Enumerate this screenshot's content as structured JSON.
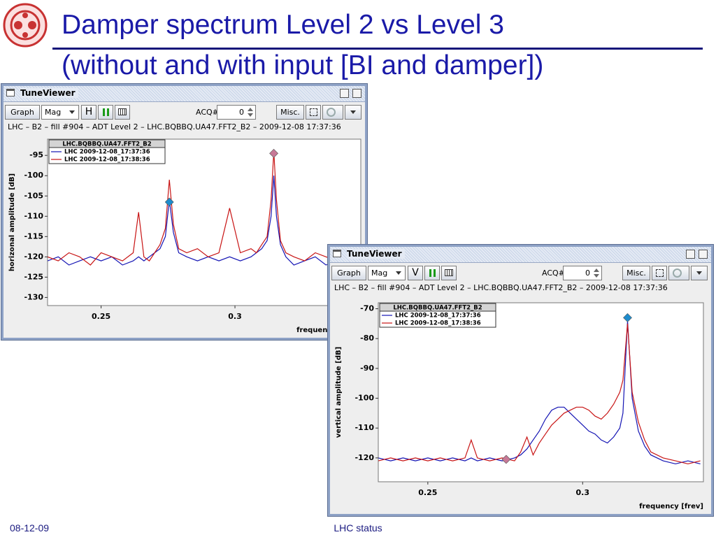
{
  "slide": {
    "title_line1": "Damper spectrum Level 2 vs Level 3",
    "title_line2": "(without and with input [BI and damper])",
    "footer_date": "08-12-09",
    "footer_center": "LHC status"
  },
  "windows": [
    {
      "title": "TuneViewer",
      "graph": "Graph",
      "mode": "Mag",
      "plane": "H",
      "acq_label": "ACQ#",
      "acq_value": 0,
      "misc": "Misc.",
      "info": "LHC – B2 – fill #904 – ADT Level 2 – LHC.BQBBQ.UA47.FFT2_B2 – 2009-12-08 17:37:36"
    },
    {
      "title": "TuneViewer",
      "graph": "Graph",
      "mode": "Mag",
      "plane": "V",
      "acq_label": "ACQ#",
      "acq_value": 0,
      "misc": "Misc.",
      "info": "LHC – B2 – fill #904 – ADT Level 2 – LHC.BQBBQ.UA47.FFT2_B2 – 2009-12-08 17:37:36"
    }
  ],
  "chart_data": [
    {
      "type": "line",
      "legend_title": "LHC.BQBBQ.UA47.FFT2_B2",
      "y_label": "horizonal amplitude [dB]",
      "x_label": "frequency [frev]",
      "xlim": [
        0.23,
        0.347
      ],
      "ylim": [
        -132,
        -91
      ],
      "xticks": [
        0.25,
        0.3
      ],
      "yticks": [
        -95,
        -100,
        -105,
        -110,
        -115,
        -120,
        -125,
        -130
      ],
      "x": [
        0.23,
        0.234,
        0.238,
        0.242,
        0.246,
        0.25,
        0.254,
        0.258,
        0.262,
        0.264,
        0.266,
        0.268,
        0.27,
        0.272,
        0.274,
        0.2755,
        0.277,
        0.279,
        0.282,
        0.286,
        0.29,
        0.294,
        0.298,
        0.302,
        0.306,
        0.308,
        0.31,
        0.312,
        0.3135,
        0.3145,
        0.3155,
        0.317,
        0.319,
        0.322,
        0.326,
        0.33,
        0.334,
        0.338,
        0.342,
        0.346
      ],
      "series": [
        {
          "name": "LHC 2009-12-08_17:37:36",
          "color": "#1414b4",
          "values": [
            -121,
            -120,
            -122,
            -121,
            -120,
            -121,
            -120,
            -122,
            -121,
            -120,
            -121,
            -120,
            -119,
            -118,
            -115,
            -106,
            -114,
            -119,
            -120,
            -121,
            -120,
            -121,
            -120,
            -121,
            -120,
            -119,
            -118,
            -116,
            -110,
            -100,
            -110,
            -117,
            -120,
            -122,
            -121,
            -120,
            -122,
            -121,
            -120,
            -121
          ]
        },
        {
          "name": "LHC 2009-12-08_17:38:36",
          "color": "#c81414",
          "values": [
            -120,
            -121,
            -119,
            -120,
            -122,
            -119,
            -120,
            -121,
            -119,
            -109,
            -120,
            -121,
            -119,
            -117,
            -113,
            -101,
            -112,
            -118,
            -119,
            -118,
            -120,
            -119,
            -108,
            -119,
            -118,
            -119,
            -117,
            -115,
            -106,
            -94,
            -106,
            -116,
            -119,
            -120,
            -121,
            -119,
            -120,
            -121,
            -120,
            -122
          ]
        }
      ],
      "markers": [
        {
          "x": 0.2755,
          "y": -106.5,
          "color": "#1e8ccd"
        },
        {
          "x": 0.3145,
          "y": -94.5,
          "color": "#c87896"
        }
      ]
    },
    {
      "type": "line",
      "legend_title": "LHC.BQBBQ.UA47.FFT2_B2",
      "y_label": "vertical amplitude [dB]",
      "x_label": "frequency [frev]",
      "xlim": [
        0.234,
        0.339
      ],
      "ylim": [
        -128,
        -68
      ],
      "xticks": [
        0.25,
        0.3
      ],
      "yticks": [
        -70,
        -80,
        -90,
        -100,
        -110,
        -120
      ],
      "x": [
        0.234,
        0.238,
        0.242,
        0.246,
        0.25,
        0.254,
        0.258,
        0.262,
        0.264,
        0.266,
        0.27,
        0.274,
        0.278,
        0.28,
        0.282,
        0.284,
        0.286,
        0.288,
        0.29,
        0.292,
        0.294,
        0.296,
        0.298,
        0.3,
        0.302,
        0.304,
        0.306,
        0.308,
        0.31,
        0.312,
        0.313,
        0.3145,
        0.316,
        0.318,
        0.32,
        0.322,
        0.326,
        0.33,
        0.334,
        0.338
      ],
      "series": [
        {
          "name": "LHC 2009-12-08_17:37:36",
          "color": "#1414b4",
          "values": [
            -120,
            -121,
            -120,
            -121,
            -120,
            -121,
            -120,
            -121,
            -120,
            -121,
            -120,
            -121,
            -120,
            -119,
            -117,
            -114,
            -111,
            -107,
            -104,
            -103,
            -103,
            -105,
            -107,
            -109,
            -111,
            -112,
            -114,
            -115,
            -113,
            -110,
            -105,
            -74,
            -100,
            -111,
            -116,
            -119,
            -121,
            -122,
            -121,
            -122
          ]
        },
        {
          "name": "LHC 2009-12-08_17:38:36",
          "color": "#c81414",
          "values": [
            -121,
            -120,
            -121,
            -120,
            -121,
            -120,
            -121,
            -120,
            -114,
            -120,
            -121,
            -120,
            -121,
            -118,
            -113,
            -119,
            -115,
            -112,
            -109,
            -107,
            -105,
            -104,
            -103,
            -103,
            -104,
            -106,
            -107,
            -105,
            -102,
            -98,
            -94,
            -75,
            -98,
            -108,
            -114,
            -118,
            -120,
            -121,
            -122,
            -121
          ]
        }
      ],
      "markers": [
        {
          "x": 0.3145,
          "y": -73,
          "color": "#1e8ccd"
        },
        {
          "x": 0.2753,
          "y": -120.5,
          "color": "#c87896"
        }
      ]
    }
  ]
}
